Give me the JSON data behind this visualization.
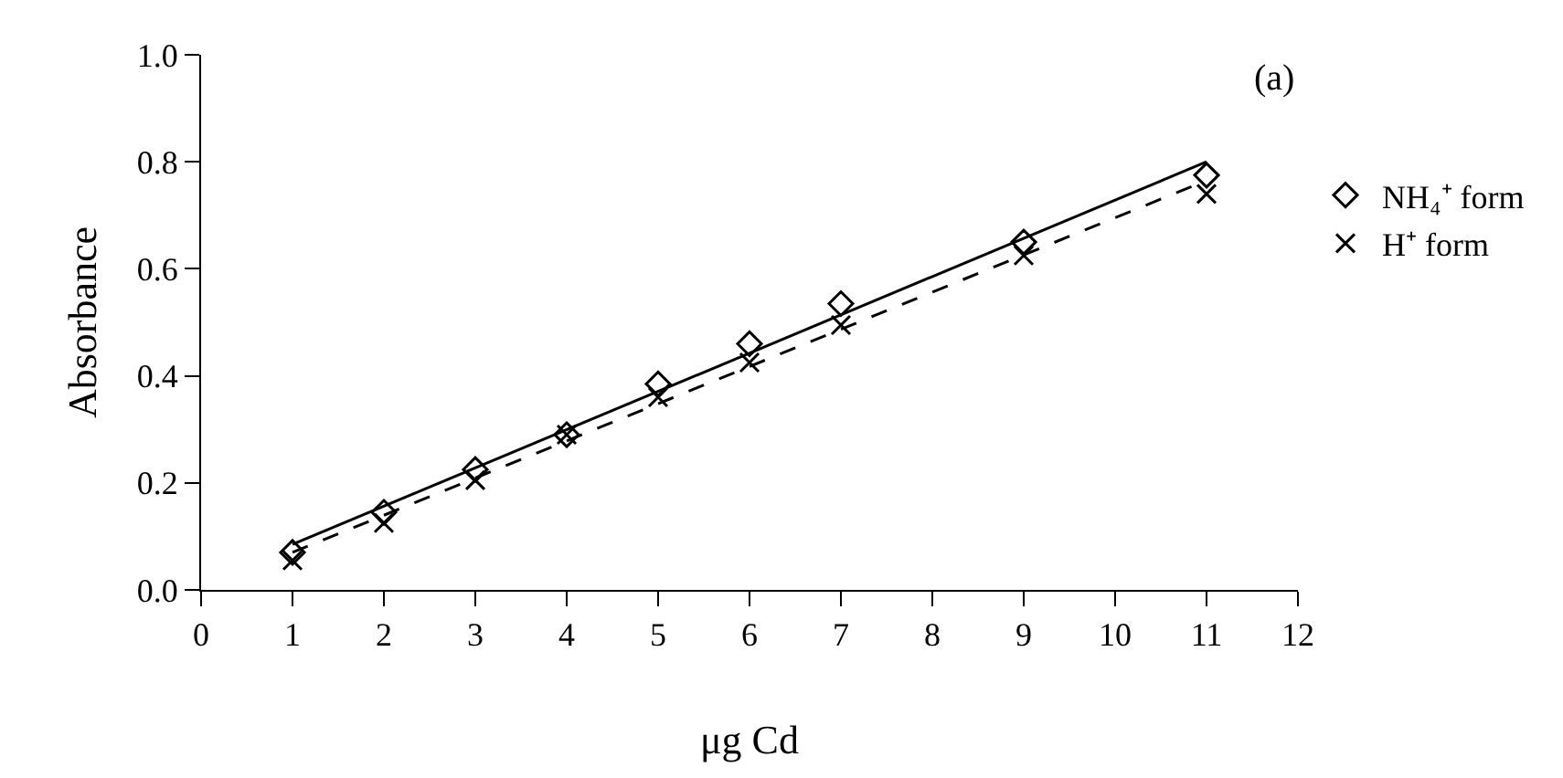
{
  "chart_data": {
    "type": "scatter",
    "xlabel": "μg Cd",
    "ylabel": "Absorbance",
    "annotations": [
      "(a)"
    ],
    "xlim": [
      0,
      12
    ],
    "xticks": [
      0,
      1,
      2,
      3,
      4,
      5,
      6,
      7,
      8,
      9,
      10,
      11,
      12
    ],
    "ylim": [
      0,
      1.0
    ],
    "yticks": [
      {
        "value": 0,
        "label": "0.0"
      },
      0.2,
      0.4,
      0.6,
      0.8,
      {
        "value": 1.0,
        "label": "1.0"
      }
    ],
    "grid": false,
    "legend": "right",
    "series": [
      {
        "name": "NH₄⁺ form",
        "marker": "diamond",
        "color": "#000000",
        "x": [
          1,
          2,
          3,
          4,
          5,
          6,
          7,
          9,
          11
        ],
        "values": [
          0.07,
          0.145,
          0.225,
          0.29,
          0.385,
          0.46,
          0.535,
          0.65,
          0.775
        ]
      },
      {
        "name": "H⁺ form",
        "marker": "cross",
        "color": "#000000",
        "x": [
          1,
          2,
          3,
          4,
          5,
          6,
          7,
          9,
          11
        ],
        "values": [
          0.055,
          0.125,
          0.205,
          0.29,
          0.36,
          0.425,
          0.495,
          0.625,
          0.74
        ]
      },
      {
        "type": "line",
        "line_style": "solid",
        "color": "#000000",
        "x": [
          1,
          11
        ],
        "values": [
          0.085,
          0.8
        ]
      },
      {
        "type": "line",
        "line_style": "dashed",
        "color": "#000000",
        "x": [
          1,
          11
        ],
        "values": [
          0.07,
          0.765
        ]
      }
    ]
  }
}
